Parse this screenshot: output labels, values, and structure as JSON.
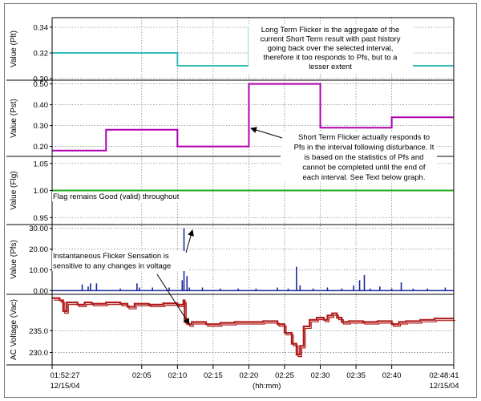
{
  "chart_data": {
    "type": "line",
    "x_unit": "(hh:mm)",
    "x_ticks": [
      "01:52:27",
      "02:05",
      "02:10",
      "02:15",
      "02:20",
      "02:25",
      "02:30",
      "02:35",
      "02:40",
      "02:48:41"
    ],
    "x_dates": [
      "12/15/04",
      "12/15/04"
    ],
    "x_range": [
      "01:52:27",
      "02:48:41"
    ],
    "grid": true,
    "panels": [
      {
        "id": "plt",
        "ylabel": "Value (Plt)",
        "yticks": [
          "0.34",
          "0.32",
          "0.30"
        ],
        "ylim": [
          0.3,
          0.345
        ],
        "color": "#33bbbb",
        "series": [
          {
            "type": "step",
            "points": [
              [
                "01:52:27",
                0.32
              ],
              [
                "02:10",
                0.31
              ],
              [
                "02:20",
                0.34
              ],
              [
                "02:40",
                0.31
              ],
              [
                "02:48:41",
                0.31
              ]
            ]
          }
        ],
        "annotations": [
          {
            "text": [
              "Long Term Flicker is the aggregate of the",
              "current Short Term result with past history",
              "going back over the selected interval,",
              "therefore it too responds to Pfs, but to a",
              "lesser extent"
            ]
          }
        ]
      },
      {
        "id": "pst",
        "ylabel": "Value (Pst)",
        "yticks": [
          "0.50",
          "0.40",
          "0.30",
          "0.20"
        ],
        "ylim": [
          0.16,
          0.51
        ],
        "color": "#b000b0",
        "series": [
          {
            "type": "step",
            "points": [
              [
                "01:52:27",
                0.18
              ],
              [
                "02:00",
                0.28
              ],
              [
                "02:10",
                0.2
              ],
              [
                "02:20",
                0.5
              ],
              [
                "02:30",
                0.29
              ],
              [
                "02:40",
                0.34
              ],
              [
                "02:48:41",
                0.34
              ]
            ]
          }
        ],
        "annotations": [
          {
            "text": [
              "Short Term Flicker actually responds to",
              "Pfs in the interval following disturbance. It",
              "is based on the statistics of Pfs and",
              "cannot be completed until the end of",
              "each interval. See Text below graph."
            ]
          }
        ]
      },
      {
        "id": "flg",
        "ylabel": "Value (Flg)",
        "yticks": [
          "1.05",
          "1.00",
          "0.95"
        ],
        "ylim": [
          0.94,
          1.06
        ],
        "color": "#22aa22",
        "series": [
          {
            "type": "step",
            "points": [
              [
                "01:52:27",
                1.0
              ],
              [
                "02:48:41",
                1.0
              ]
            ]
          }
        ],
        "annotations": [
          {
            "text": [
              "Flag remains Good (valid) throughout"
            ]
          }
        ]
      },
      {
        "id": "pfs",
        "ylabel": "Value (Pfs)",
        "yticks": [
          "30.00",
          "20.00",
          "10.00",
          "0.00"
        ],
        "ylim": [
          -1,
          31
        ],
        "color": "#1a2a99",
        "spikes": [
          [
            "01:56:40",
            3
          ],
          [
            "01:57:30",
            2
          ],
          [
            "01:57:50",
            3.5
          ],
          [
            "01:58:40",
            3.5
          ],
          [
            "02:02:00",
            1
          ],
          [
            "02:04:20",
            3.5
          ],
          [
            "02:04:40",
            1.5
          ],
          [
            "02:06:30",
            1.5
          ],
          [
            "02:08:50",
            1.5
          ],
          [
            "02:10:40",
            5
          ],
          [
            "02:10:55",
            30
          ],
          [
            "02:11:20",
            7
          ],
          [
            "02:11:40",
            1.5
          ],
          [
            "02:13:30",
            1.5
          ],
          [
            "02:16:00",
            1
          ],
          [
            "02:18:30",
            1
          ],
          [
            "02:21:00",
            1
          ],
          [
            "02:24:00",
            1.5
          ],
          [
            "02:25:30",
            1
          ],
          [
            "02:26:40",
            11.5
          ],
          [
            "02:27:10",
            2.5
          ],
          [
            "02:29:00",
            1
          ],
          [
            "02:31:00",
            1.5
          ],
          [
            "02:33:00",
            1
          ],
          [
            "02:34:40",
            2.5
          ],
          [
            "02:35:30",
            5
          ],
          [
            "02:36:10",
            7.5
          ],
          [
            "02:37:00",
            1
          ],
          [
            "02:38:20",
            2
          ],
          [
            "02:40:00",
            1
          ],
          [
            "02:41:20",
            4
          ],
          [
            "02:43:00",
            1
          ],
          [
            "02:45:00",
            1
          ],
          [
            "02:47:30",
            1.5
          ]
        ],
        "annotations": [
          {
            "text": [
              "Instantaneous Flicker Sensation is",
              "sensitive to any changes in voltage"
            ]
          }
        ]
      },
      {
        "id": "vac",
        "ylabel": "AC Voltage (Vac)",
        "yticks": [
          "235.0",
          "230.0"
        ],
        "ylim": [
          227.5,
          243.0
        ],
        "color": "#b01a1a",
        "series": [
          {
            "type": "step",
            "points": [
              [
                "01:52:27",
                242.5
              ],
              [
                "01:53:30",
                242.0
              ],
              [
                "01:54:00",
                239.5
              ],
              [
                "01:54:30",
                241.5
              ],
              [
                "01:56:00",
                241.0
              ],
              [
                "01:57:00",
                241.5
              ],
              [
                "01:58:00",
                241.2
              ],
              [
                "02:00:00",
                241.5
              ],
              [
                "02:02:00",
                241.2
              ],
              [
                "02:03:00",
                240.5
              ],
              [
                "02:04:00",
                241.2
              ],
              [
                "02:06:00",
                241.0
              ],
              [
                "02:08:00",
                241.3
              ],
              [
                "02:10:00",
                241.0
              ],
              [
                "02:10:50",
                242.0
              ],
              [
                "02:11:00",
                237.0
              ],
              [
                "02:11:30",
                236.5
              ],
              [
                "02:12:00",
                237.0
              ],
              [
                "02:14:00",
                236.5
              ],
              [
                "02:16:00",
                236.8
              ],
              [
                "02:18:00",
                237.0
              ],
              [
                "02:20:00",
                237.0
              ],
              [
                "02:22:00",
                237.2
              ],
              [
                "02:24:00",
                236.5
              ],
              [
                "02:25:00",
                234.5
              ],
              [
                "02:26:00",
                232.0
              ],
              [
                "02:26:40",
                229.5
              ],
              [
                "02:27:10",
                231.5
              ],
              [
                "02:27:40",
                236.0
              ],
              [
                "02:28:30",
                237.5
              ],
              [
                "02:29:30",
                238.0
              ],
              [
                "02:30:30",
                237.5
              ],
              [
                "02:31:00",
                238.5
              ],
              [
                "02:31:40",
                239.0
              ],
              [
                "02:32:20",
                238.0
              ],
              [
                "02:33:00",
                237.0
              ],
              [
                "02:34:00",
                237.2
              ],
              [
                "02:36:00",
                237.0
              ],
              [
                "02:38:00",
                237.2
              ],
              [
                "02:40:00",
                236.5
              ],
              [
                "02:41:00",
                237.0
              ],
              [
                "02:42:00",
                237.2
              ],
              [
                "02:44:00",
                237.5
              ],
              [
                "02:46:00",
                237.8
              ],
              [
                "02:48:41",
                237.8
              ]
            ]
          }
        ]
      }
    ]
  }
}
